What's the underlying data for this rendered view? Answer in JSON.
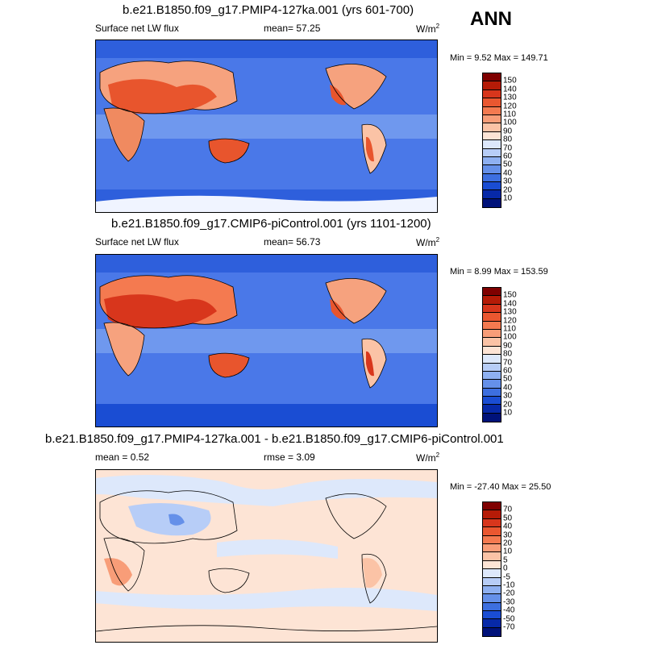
{
  "season": "ANN",
  "panels": [
    {
      "title": "b.e21.B1850.f09_g17.PMIP4-127ka.001 (yrs 601-700)",
      "variable": "Surface net LW flux",
      "stat1_label": "mean=",
      "stat1_value": "57.25",
      "stat2_label": "",
      "stat2_value": "",
      "units": "W/m",
      "units_sup": "2",
      "minmax": "Min =   9.52 Max = 149.71",
      "colorbar_labels": [
        "150",
        "140",
        "130",
        "120",
        "110",
        "100",
        "90",
        "80",
        "70",
        "60",
        "50",
        "40",
        "30",
        "20",
        "10"
      ],
      "colors": [
        "#7f0000",
        "#b51b07",
        "#d8361c",
        "#ea5730",
        "#f47a50",
        "#f89d78",
        "#fbc3a6",
        "#fde4d5",
        "#dde8fb",
        "#b7cdf7",
        "#8eb0f1",
        "#6590e9",
        "#3d6fe0",
        "#1a4dd3",
        "#0729a8",
        "#00127a"
      ],
      "map_data": {
        "type": "filled-contour",
        "field": "Surface net LW flux",
        "mean": 57.25,
        "min": 9.52,
        "max": 149.71,
        "contour_levels": [
          10,
          20,
          30,
          40,
          50,
          60,
          70,
          80,
          90,
          100,
          110,
          120,
          130,
          140,
          150
        ]
      }
    },
    {
      "title": "b.e21.B1850.f09_g17.CMIP6-piControl.001 (yrs 1101-1200)",
      "variable": "Surface net LW flux",
      "stat1_label": "mean=",
      "stat1_value": "56.73",
      "stat2_label": "",
      "stat2_value": "",
      "units": "W/m",
      "units_sup": "2",
      "minmax": "Min =   8.99 Max = 153.59",
      "colorbar_labels": [
        "150",
        "140",
        "130",
        "120",
        "110",
        "100",
        "90",
        "80",
        "70",
        "60",
        "50",
        "40",
        "30",
        "20",
        "10"
      ],
      "colors": [
        "#7f0000",
        "#b51b07",
        "#d8361c",
        "#ea5730",
        "#f47a50",
        "#f89d78",
        "#fbc3a6",
        "#fde4d5",
        "#dde8fb",
        "#b7cdf7",
        "#8eb0f1",
        "#6590e9",
        "#3d6fe0",
        "#1a4dd3",
        "#0729a8",
        "#00127a"
      ],
      "map_data": {
        "type": "filled-contour",
        "field": "Surface net LW flux",
        "mean": 56.73,
        "min": 8.99,
        "max": 153.59,
        "contour_levels": [
          10,
          20,
          30,
          40,
          50,
          60,
          70,
          80,
          90,
          100,
          110,
          120,
          130,
          140,
          150
        ]
      }
    },
    {
      "title": "b.e21.B1850.f09_g17.PMIP4-127ka.001 - b.e21.B1850.f09_g17.CMIP6-piControl.001",
      "variable": "",
      "stat1_label": "mean =",
      "stat1_value": "0.52",
      "stat2_label": "rmse =",
      "stat2_value": "3.09",
      "units": "W/m",
      "units_sup": "2",
      "minmax": "Min = -27.40 Max =  25.50",
      "colorbar_labels": [
        "70",
        "50",
        "40",
        "30",
        "20",
        "10",
        "5",
        "0",
        "-5",
        "-10",
        "-20",
        "-30",
        "-40",
        "-50",
        "-70"
      ],
      "colors": [
        "#7f0000",
        "#b51b07",
        "#d8361c",
        "#ea5730",
        "#f47a50",
        "#f89d78",
        "#fbc3a6",
        "#fde4d5",
        "#dde8fb",
        "#b7cdf7",
        "#8eb0f1",
        "#6590e9",
        "#3d6fe0",
        "#1a4dd3",
        "#0729a8",
        "#00127a"
      ],
      "map_data": {
        "type": "filled-contour",
        "field": "difference",
        "mean": 0.52,
        "rmse": 3.09,
        "min": -27.4,
        "max": 25.5,
        "contour_levels": [
          -70,
          -50,
          -40,
          -30,
          -20,
          -10,
          -5,
          0,
          5,
          10,
          20,
          30,
          40,
          50,
          70
        ]
      }
    }
  ]
}
